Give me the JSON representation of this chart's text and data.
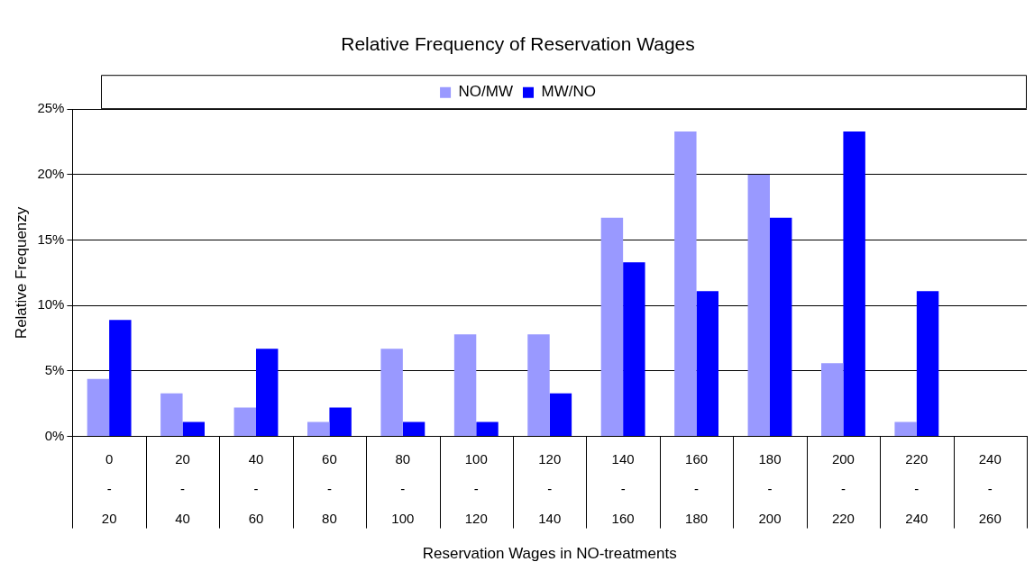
{
  "chart_data": {
    "type": "bar",
    "title": "Relative Frequency of Reservation Wages",
    "xlabel": "Reservation Wages in NO-treatments",
    "ylabel": "Relative Frequenzy",
    "categories": [
      "0\n-\n20",
      "20\n-\n40",
      "40\n-\n60",
      "60\n-\n80",
      "80\n-\n100",
      "100\n-\n120",
      "120\n-\n140",
      "140\n-\n160",
      "160\n-\n180",
      "180\n-\n200",
      "200\n-\n220",
      "220\n-\n240",
      "240\n-\n260"
    ],
    "series": [
      {
        "name": "NO/MW",
        "color": "#9999ff",
        "values": [
          4.4,
          3.3,
          2.2,
          1.1,
          6.7,
          7.8,
          7.8,
          16.7,
          23.3,
          20.0,
          5.6,
          1.1,
          0
        ]
      },
      {
        "name": "MW/NO",
        "color": "#0000ff",
        "values": [
          8.9,
          1.1,
          6.7,
          2.2,
          1.1,
          1.1,
          3.3,
          13.3,
          11.1,
          16.7,
          23.3,
          11.1,
          0
        ]
      }
    ],
    "ylim": [
      0,
      25
    ],
    "yticks": [
      {
        "value": 0,
        "label": "0%"
      },
      {
        "value": 5,
        "label": "5%"
      },
      {
        "value": 10,
        "label": "10%"
      },
      {
        "value": 15,
        "label": "15%"
      },
      {
        "value": 20,
        "label": "20%"
      },
      {
        "value": 25,
        "label": "25%"
      }
    ],
    "grid": "y",
    "legend": "top"
  }
}
